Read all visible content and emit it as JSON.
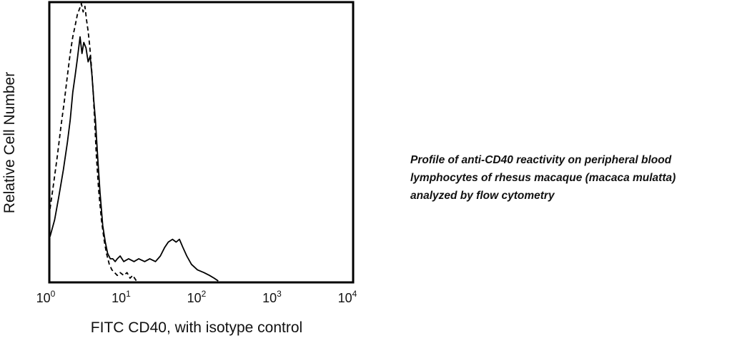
{
  "chart_data": {
    "type": "line",
    "title": "",
    "xlabel": "FITC CD40, with isotype control",
    "ylabel": "Relative Cell Number",
    "xscale": "log",
    "xlim": [
      1,
      10000
    ],
    "ylim": [
      0,
      100
    ],
    "x_ticks": [
      {
        "base": "10",
        "exp": "0"
      },
      {
        "base": "10",
        "exp": "1"
      },
      {
        "base": "10",
        "exp": "2"
      },
      {
        "base": "10",
        "exp": "3"
      },
      {
        "base": "10",
        "exp": "4"
      }
    ],
    "y_ticks": [],
    "grid": false,
    "legend": "none",
    "series": [
      {
        "style": "solid",
        "color": "#000000",
        "x": [
          1.0,
          1.15,
          1.3,
          1.5,
          1.7,
          1.85,
          2.0,
          2.15,
          2.3,
          2.5,
          2.65,
          2.8,
          3.0,
          3.2,
          3.4,
          3.6,
          3.8,
          4.0,
          4.3,
          4.6,
          5.0,
          5.4,
          5.8,
          6.3,
          6.8,
          7.3,
          7.8,
          8.5,
          9.5,
          11,
          13,
          15,
          18,
          21,
          25,
          29,
          33,
          37,
          42,
          47,
          52,
          58,
          65,
          75,
          90,
          110,
          130,
          150,
          170
        ],
        "y": [
          16,
          22,
          30,
          40,
          50,
          58,
          68,
          74,
          80,
          88,
          82,
          86,
          84,
          79,
          81,
          74,
          65,
          58,
          44,
          32,
          20,
          14,
          10,
          8,
          8,
          7,
          8,
          9,
          7,
          8,
          7,
          8,
          7,
          8,
          7,
          9,
          12,
          14,
          15,
          14,
          15,
          12,
          9,
          6,
          4,
          3,
          2,
          1,
          0
        ]
      },
      {
        "style": "dashed",
        "color": "#000000",
        "x": [
          1.0,
          1.1,
          1.25,
          1.4,
          1.55,
          1.7,
          1.85,
          2.0,
          2.15,
          2.3,
          2.45,
          2.6,
          2.75,
          2.9,
          3.05,
          3.2,
          3.35,
          3.5,
          3.7,
          3.9,
          4.1,
          4.4,
          4.8,
          5.2,
          5.6,
          6.1,
          6.6,
          7.2,
          7.8,
          8.5,
          9.5,
          10.5,
          11.5,
          12.5,
          14
        ],
        "y": [
          26,
          34,
          45,
          56,
          65,
          74,
          82,
          88,
          92,
          96,
          98,
          100,
          97,
          99,
          94,
          90,
          85,
          79,
          70,
          58,
          46,
          33,
          22,
          15,
          10,
          6,
          4,
          3,
          2,
          3,
          2,
          3,
          1,
          2,
          0
        ]
      }
    ]
  },
  "caption": {
    "lines": [
      "Profile of anti-CD40 reactivity on peripheral blood",
      "lymphocytes of rhesus macaque (macaca mulatta)",
      "analyzed by flow cytometry"
    ]
  }
}
